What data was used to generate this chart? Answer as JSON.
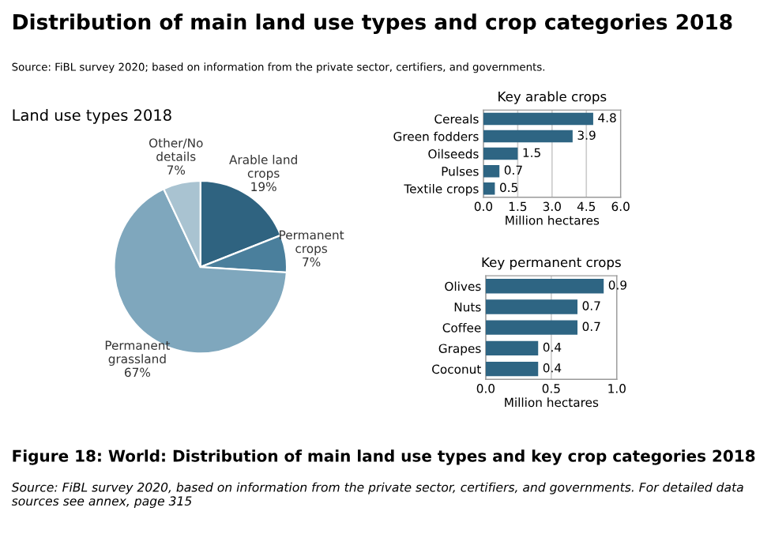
{
  "chart_data": [
    {
      "type": "pie",
      "title": "Distribution of main land use types and crop categories 2018",
      "subtitle": "Source: FiBL survey 2020; based on information from the private sector, certifiers, and governments.",
      "xlabel": "Land use types 2018",
      "categories": [
        "Arable land\ncrops",
        "Permanent\ncrops",
        "Permanent\ngrassland",
        "Other/No\ndetails"
      ],
      "values": [
        19,
        7,
        67,
        7
      ],
      "value_labels": [
        "19%",
        "7%",
        "67%",
        "7%"
      ],
      "colors": [
        "#2f6380",
        "#4a7f9c",
        "#7fa7bd",
        "#a9c3d1"
      ],
      "annotations": [
        "Figure 18: World: Distribution of main land use types and key crop categories 2018",
        "Source: FiBL survey 2020, based on information from the private sector, certifiers, and governments. For detailed data sources see annex, page 315"
      ]
    },
    {
      "type": "bar",
      "orientation": "horizontal",
      "title": "Key arable crops",
      "xlabel": "Million hectares",
      "categories": [
        "Cereals",
        "Green fodders",
        "Oilseeds",
        "Pulses",
        "Textile crops"
      ],
      "values": [
        4.8,
        3.9,
        1.5,
        0.7,
        0.5
      ],
      "color": "#2e6583",
      "xlim": [
        0,
        6
      ],
      "xticks": [
        {
          "value": 0,
          "label": "0.0"
        },
        1.5,
        {
          "value": 3,
          "label": "3.0"
        },
        4.5,
        {
          "value": 6,
          "label": "6.0"
        }
      ],
      "grid": "x",
      "data_labels": true
    },
    {
      "type": "bar",
      "orientation": "horizontal",
      "title": "Key permanent crops",
      "xlabel": "Million hectares",
      "categories": [
        "Olives",
        "Nuts",
        "Coffee",
        "Grapes",
        "Coconut"
      ],
      "values": [
        0.9,
        0.7,
        0.7,
        0.4,
        0.4
      ],
      "color": "#2e6583",
      "xlim": [
        0,
        1
      ],
      "xticks": [
        {
          "value": 0,
          "label": "0.0"
        },
        0.5,
        {
          "value": 1,
          "label": "1.0"
        }
      ],
      "grid": "x",
      "data_labels": true
    }
  ]
}
